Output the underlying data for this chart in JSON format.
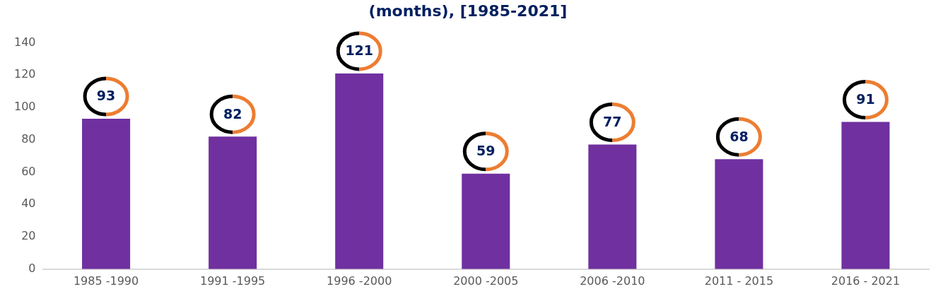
{
  "chart_data": {
    "type": "bar",
    "title": "(months), [1985-2021]",
    "categories": [
      "1985 -1990",
      "1991 -1995",
      "1996 -2000",
      "2000 -2005",
      "2006 -2010",
      "2011 - 2015",
      "2016 - 2021"
    ],
    "values": [
      93,
      82,
      121,
      59,
      77,
      68,
      91
    ],
    "color": "#7030a0",
    "ylim": [
      0,
      140
    ],
    "yticks": [
      0,
      20,
      40,
      60,
      80,
      100,
      120,
      140
    ],
    "grid": false,
    "legend": false,
    "data_labels": true
  }
}
